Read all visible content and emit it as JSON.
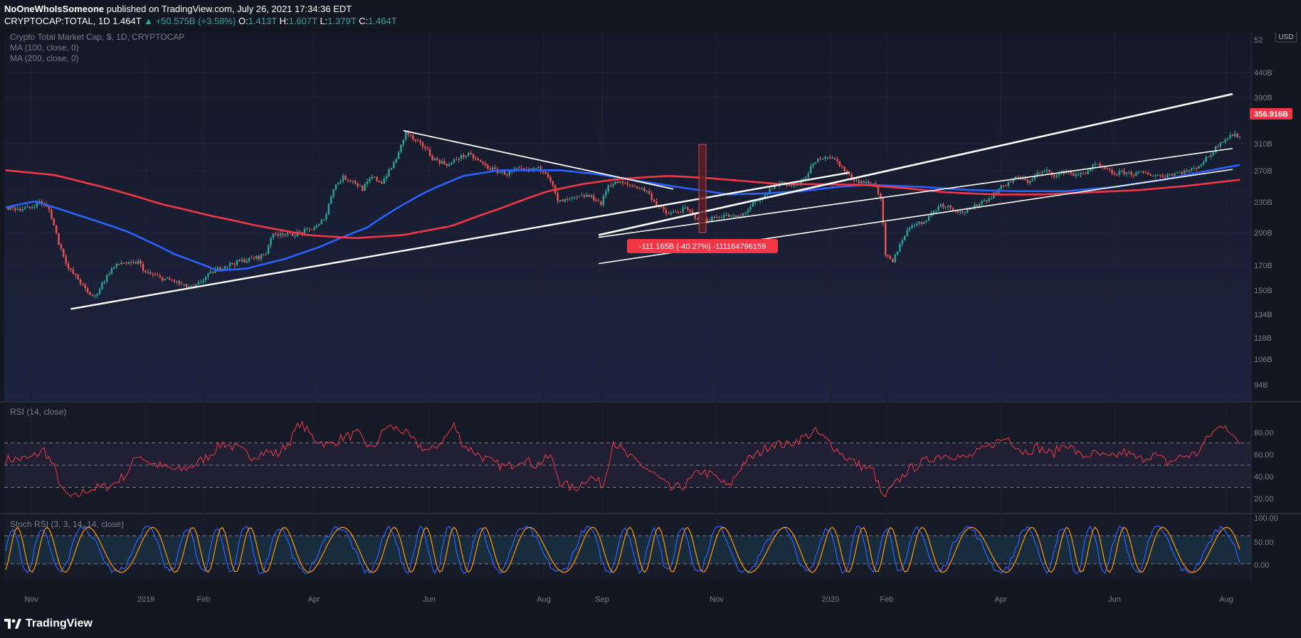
{
  "header": {
    "author": "NoOneWhoIsSomeone",
    "published_text": "published on TradingView.com, July 26, 2021 17:34:36 EDT",
    "symbol": "CRYPTOCAP:TOTAL, 1D",
    "last": "1.464T",
    "change": "▲ +50.575B (+3.58%)",
    "o_label": "O:",
    "o": "1.413T",
    "h_label": "H:",
    "h": "1.607T",
    "l_label": "L:",
    "l": "1.379T",
    "c_label": "C:",
    "c": "1.464T"
  },
  "legend": {
    "title": "Crypto Total Market Cap, $, 1D, CRYPTOCAP",
    "ma100": "MA (100, close, 0)",
    "ma200": "MA (200, close, 0)",
    "rsi": "RSI (14, close)",
    "stoch": "Stoch RSI (3, 3, 14, 14, close)"
  },
  "annotation": {
    "measure": "-111.165B (-40.27%) -111164796159"
  },
  "price_badge": "356.916B",
  "currency_badge": "USD",
  "footer": {
    "brand": "TradingView"
  },
  "colors": {
    "background": "#131722",
    "up": "#26a69a",
    "down": "#ef5350",
    "ma100": "#2962ff",
    "ma200": "#f23645",
    "rsi": "#f23645",
    "stoch_k": "#2962ff",
    "stoch_d": "#ff9800",
    "trendline": "#ffffff"
  },
  "chart_data": [
    {
      "type": "candlestick",
      "title": "Crypto Total Market Cap, $, 1D, CRYPTOCAP",
      "y_scale": "log",
      "y_ticks": [
        "94B",
        "106B",
        "118B",
        "134B",
        "150B",
        "170B",
        "200B",
        "230B",
        "270B",
        "310B",
        "390B",
        "440B",
        "52"
      ],
      "x_ticks": [
        "Nov",
        "2019",
        "Feb",
        "Apr",
        "Jun",
        "Aug",
        "Sep",
        "Nov",
        "2020",
        "Feb",
        "Apr",
        "Jun",
        "Aug"
      ],
      "close_path_B": [
        [
          0,
          200
        ],
        [
          5,
          198
        ],
        [
          10,
          199
        ],
        [
          14,
          210
        ],
        [
          18,
          196
        ],
        [
          22,
          150
        ],
        [
          26,
          122
        ],
        [
          30,
          112
        ],
        [
          34,
          100
        ],
        [
          37,
          97
        ],
        [
          40,
          108
        ],
        [
          44,
          122
        ],
        [
          48,
          128
        ],
        [
          52,
          126
        ],
        [
          55,
          129
        ],
        [
          58,
          118
        ],
        [
          62,
          115
        ],
        [
          66,
          112
        ],
        [
          70,
          110
        ],
        [
          74,
          106
        ],
        [
          78,
          104
        ],
        [
          82,
          112
        ],
        [
          86,
          119
        ],
        [
          90,
          124
        ],
        [
          94,
          127
        ],
        [
          98,
          130
        ],
        [
          102,
          132
        ],
        [
          105,
          134
        ],
        [
          108,
          138
        ],
        [
          110,
          158
        ],
        [
          114,
          163
        ],
        [
          118,
          160
        ],
        [
          122,
          163
        ],
        [
          126,
          167
        ],
        [
          130,
          173
        ],
        [
          133,
          190
        ],
        [
          136,
          235
        ],
        [
          140,
          255
        ],
        [
          144,
          248
        ],
        [
          148,
          232
        ],
        [
          152,
          255
        ],
        [
          156,
          245
        ],
        [
          160,
          275
        ],
        [
          163,
          310
        ],
        [
          166,
          368
        ],
        [
          170,
          340
        ],
        [
          174,
          325
        ],
        [
          177,
          298
        ],
        [
          180,
          290
        ],
        [
          184,
          282
        ],
        [
          188,
          300
        ],
        [
          192,
          306
        ],
        [
          196,
          292
        ],
        [
          200,
          276
        ],
        [
          204,
          268
        ],
        [
          208,
          262
        ],
        [
          212,
          272
        ],
        [
          216,
          268
        ],
        [
          220,
          275
        ],
        [
          224,
          268
        ],
        [
          226,
          250
        ],
        [
          229,
          209
        ],
        [
          233,
          212
        ],
        [
          237,
          216
        ],
        [
          241,
          220
        ],
        [
          245,
          214
        ],
        [
          247,
          205
        ],
        [
          250,
          240
        ],
        [
          254,
          245
        ],
        [
          258,
          240
        ],
        [
          262,
          236
        ],
        [
          266,
          228
        ],
        [
          270,
          205
        ],
        [
          274,
          190
        ],
        [
          278,
          192
        ],
        [
          282,
          198
        ],
        [
          286,
          186
        ],
        [
          290,
          180
        ],
        [
          294,
          184
        ],
        [
          298,
          188
        ],
        [
          302,
          185
        ],
        [
          305,
          186
        ],
        [
          310,
          205
        ],
        [
          314,
          214
        ],
        [
          318,
          235
        ],
        [
          322,
          246
        ],
        [
          326,
          238
        ],
        [
          330,
          243
        ],
        [
          334,
          275
        ],
        [
          338,
          300
        ],
        [
          341,
          303
        ],
        [
          345,
          290
        ],
        [
          349,
          262
        ],
        [
          353,
          248
        ],
        [
          357,
          244
        ],
        [
          361,
          240
        ],
        [
          363,
          212
        ],
        [
          365,
          135
        ],
        [
          368,
          128
        ],
        [
          372,
          155
        ],
        [
          376,
          175
        ],
        [
          380,
          176
        ],
        [
          384,
          190
        ],
        [
          388,
          205
        ],
        [
          392,
          200
        ],
        [
          396,
          192
        ],
        [
          400,
          195
        ],
        [
          404,
          208
        ],
        [
          408,
          215
        ],
        [
          412,
          232
        ],
        [
          416,
          245
        ],
        [
          420,
          255
        ],
        [
          424,
          246
        ],
        [
          428,
          262
        ],
        [
          432,
          268
        ],
        [
          436,
          258
        ],
        [
          440,
          270
        ],
        [
          444,
          258
        ],
        [
          448,
          266
        ],
        [
          452,
          282
        ],
        [
          456,
          272
        ],
        [
          460,
          262
        ],
        [
          464,
          266
        ],
        [
          468,
          262
        ],
        [
          472,
          264
        ],
        [
          476,
          260
        ],
        [
          480,
          258
        ],
        [
          484,
          262
        ],
        [
          488,
          266
        ],
        [
          492,
          270
        ],
        [
          496,
          285
        ],
        [
          500,
          308
        ],
        [
          504,
          340
        ],
        [
          508,
          358
        ],
        [
          512,
          357
        ]
      ],
      "series": [
        {
          "name": "MA (100, close, 0)",
          "path_B": [
            [
              0,
              200
            ],
            [
              12,
              210
            ],
            [
              30,
              188
            ],
            [
              50,
              165
            ],
            [
              70,
              137
            ],
            [
              88,
              120
            ],
            [
              100,
              122
            ],
            [
              116,
              132
            ],
            [
              130,
              145
            ],
            [
              150,
              170
            ],
            [
              175,
              228
            ],
            [
              190,
              258
            ],
            [
              205,
              270
            ],
            [
              230,
              270
            ],
            [
              245,
              262
            ],
            [
              262,
              248
            ],
            [
              280,
              235
            ],
            [
              300,
              222
            ],
            [
              315,
              224
            ],
            [
              330,
              228
            ],
            [
              345,
              236
            ],
            [
              358,
              240
            ],
            [
              380,
              236
            ],
            [
              400,
              230
            ],
            [
              420,
              228
            ],
            [
              440,
              228
            ],
            [
              460,
              236
            ],
            [
              480,
              250
            ],
            [
              500,
              270
            ],
            [
              512,
              282
            ]
          ]
        },
        {
          "name": "MA (200, close, 0)",
          "path_B": [
            [
              0,
              270
            ],
            [
              20,
              260
            ],
            [
              45,
              230
            ],
            [
              65,
              205
            ],
            [
              85,
              187
            ],
            [
              105,
              172
            ],
            [
              125,
              160
            ],
            [
              145,
              156
            ],
            [
              165,
              160
            ],
            [
              185,
              172
            ],
            [
              205,
              198
            ],
            [
              225,
              228
            ],
            [
              240,
              242
            ],
            [
              255,
              252
            ],
            [
              275,
              258
            ],
            [
              290,
              254
            ],
            [
              305,
              248
            ],
            [
              320,
              242
            ],
            [
              340,
              241
            ],
            [
              355,
              240
            ],
            [
              372,
              234
            ],
            [
              390,
              226
            ],
            [
              410,
              222
            ],
            [
              430,
              222
            ],
            [
              450,
              226
            ],
            [
              470,
              230
            ],
            [
              490,
              238
            ],
            [
              512,
              250
            ]
          ]
        }
      ],
      "trendlines": [
        "ascending support (long)",
        "descending resistance from Jun peak",
        "ascending channel upper",
        "ascending channel mid",
        "ascending channel lower (2020)"
      ],
      "price_badge": "356.916B",
      "measure_label": "-111.165B (-40.27%) -111164796159"
    },
    {
      "type": "line",
      "title": "RSI (14, close)",
      "y_ticks": [
        "80.00",
        "60.00",
        "40.00",
        "20.00"
      ],
      "bands": [
        30,
        50,
        70
      ],
      "series": [
        {
          "name": "RSI",
          "path": [
            [
              0,
              55
            ],
            [
              10,
              56
            ],
            [
              16,
              64
            ],
            [
              20,
              48
            ],
            [
              24,
              25
            ],
            [
              28,
              20
            ],
            [
              34,
              28
            ],
            [
              40,
              30
            ],
            [
              44,
              32
            ],
            [
              50,
              42
            ],
            [
              55,
              60
            ],
            [
              60,
              52
            ],
            [
              66,
              48
            ],
            [
              72,
              45
            ],
            [
              78,
              50
            ],
            [
              84,
              58
            ],
            [
              90,
              70
            ],
            [
              96,
              65
            ],
            [
              102,
              58
            ],
            [
              108,
              62
            ],
            [
              113,
              60
            ],
            [
              118,
              72
            ],
            [
              122,
              88
            ],
            [
              128,
              74
            ],
            [
              134,
              68
            ],
            [
              140,
              75
            ],
            [
              146,
              78
            ],
            [
              152,
              64
            ],
            [
              158,
              85
            ],
            [
              164,
              82
            ],
            [
              170,
              70
            ],
            [
              176,
              62
            ],
            [
              182,
              74
            ],
            [
              186,
              86
            ],
            [
              190,
              68
            ],
            [
              196,
              60
            ],
            [
              202,
              52
            ],
            [
              208,
              48
            ],
            [
              214,
              56
            ],
            [
              220,
              50
            ],
            [
              226,
              58
            ],
            [
              230,
              35
            ],
            [
              236,
              28
            ],
            [
              242,
              40
            ],
            [
              248,
              32
            ],
            [
              252,
              72
            ],
            [
              258,
              58
            ],
            [
              264,
              50
            ],
            [
              270,
              40
            ],
            [
              276,
              28
            ],
            [
              282,
              32
            ],
            [
              288,
              45
            ],
            [
              294,
              40
            ],
            [
              300,
              30
            ],
            [
              306,
              52
            ],
            [
              312,
              60
            ],
            [
              318,
              70
            ],
            [
              324,
              68
            ],
            [
              330,
              74
            ],
            [
              336,
              80
            ],
            [
              342,
              70
            ],
            [
              348,
              58
            ],
            [
              354,
              50
            ],
            [
              360,
              45
            ],
            [
              364,
              20
            ],
            [
              368,
              30
            ],
            [
              374,
              45
            ],
            [
              380,
              52
            ],
            [
              386,
              58
            ],
            [
              392,
              60
            ],
            [
              398,
              56
            ],
            [
              404,
              62
            ],
            [
              410,
              70
            ],
            [
              416,
              75
            ],
            [
              422,
              62
            ],
            [
              428,
              66
            ],
            [
              434,
              60
            ],
            [
              440,
              70
            ],
            [
              446,
              58
            ],
            [
              452,
              60
            ],
            [
              458,
              56
            ],
            [
              464,
              62
            ],
            [
              470,
              55
            ],
            [
              476,
              60
            ],
            [
              482,
              52
            ],
            [
              488,
              58
            ],
            [
              494,
              60
            ],
            [
              500,
              78
            ],
            [
              506,
              88
            ],
            [
              510,
              72
            ],
            [
              512,
              70
            ]
          ]
        }
      ]
    },
    {
      "type": "line",
      "title": "Stoch RSI (3, 3, 14, 14, close)",
      "y_ticks": [
        "100.00",
        "50.00",
        "0.00"
      ],
      "bands": [
        20,
        80
      ],
      "series": [
        {
          "name": "K"
        },
        {
          "name": "D"
        }
      ]
    }
  ]
}
